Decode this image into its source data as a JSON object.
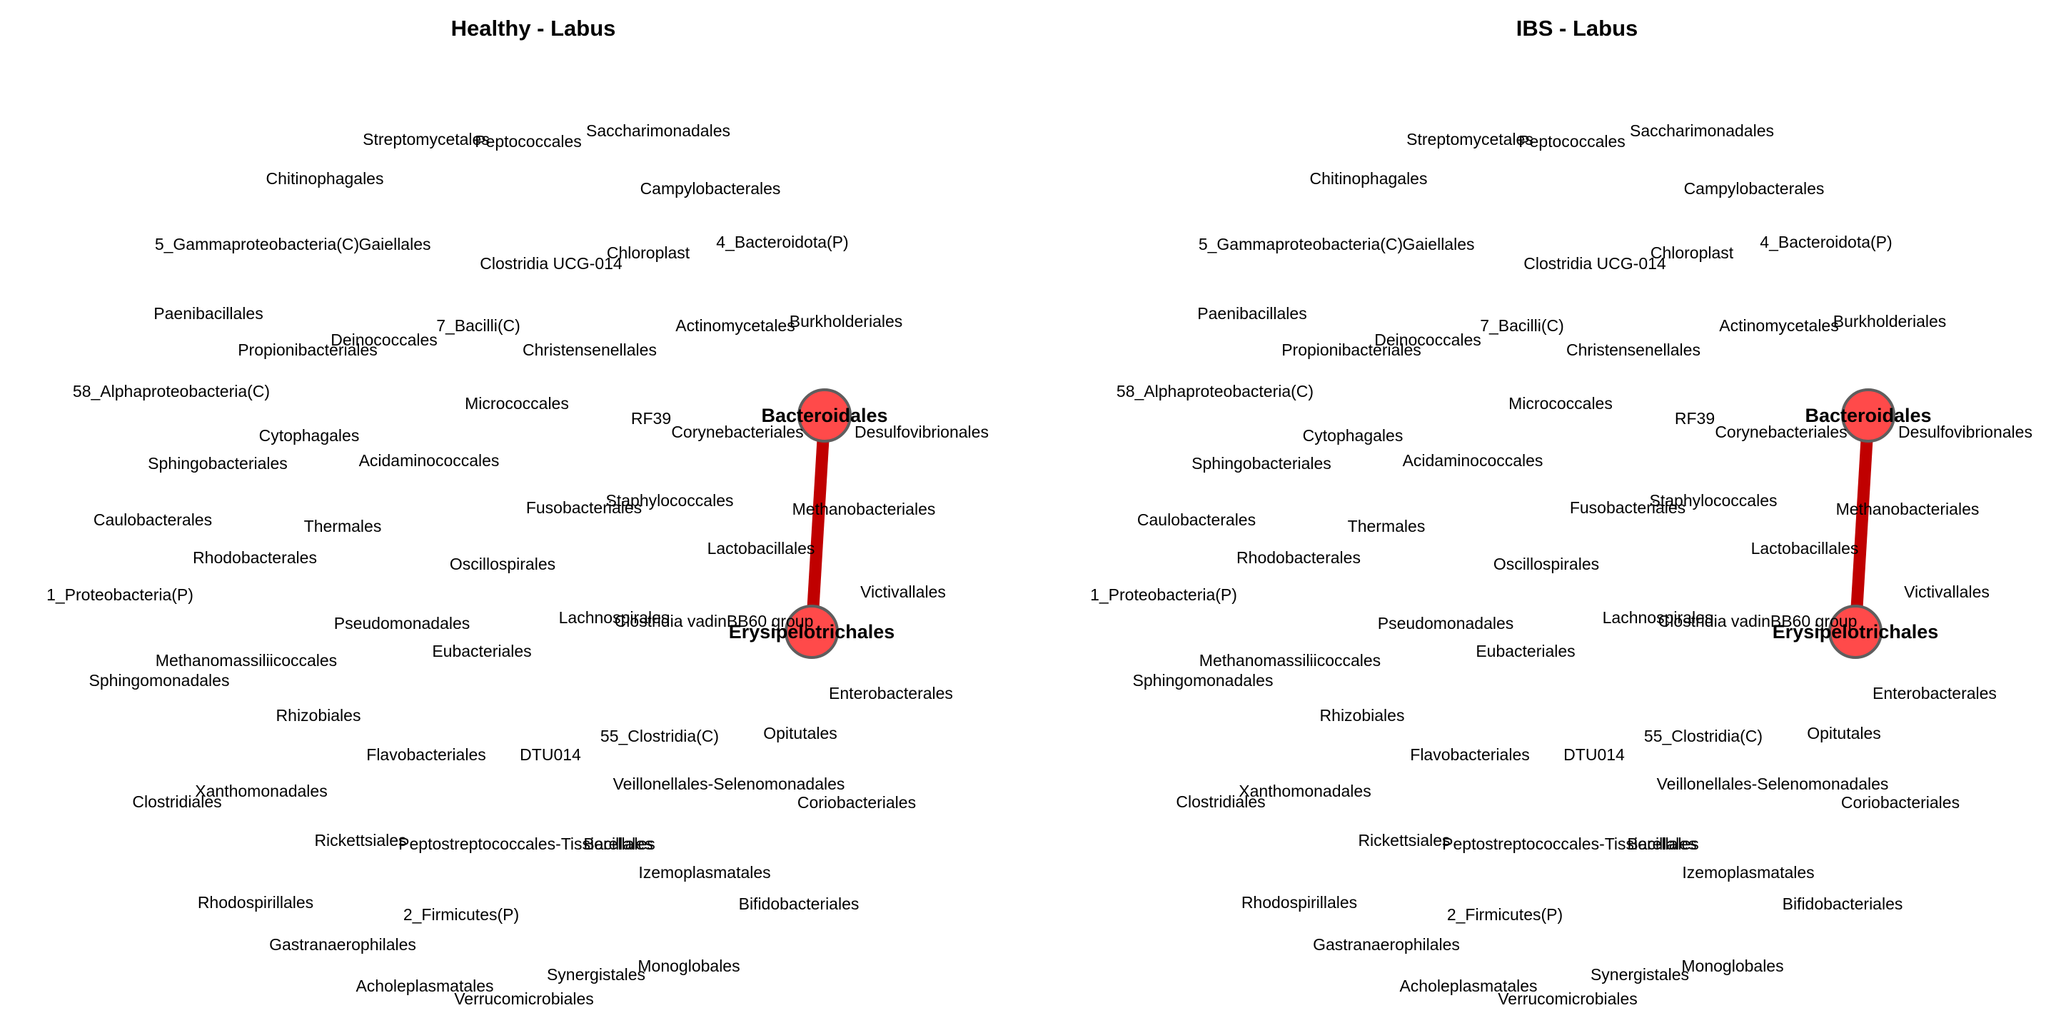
{
  "colors": {
    "node_fill": "#ff4a4a",
    "node_stroke": "#5e5e5e",
    "edge": "#c00000",
    "label": "#000000"
  },
  "panels": [
    {
      "title": "Healthy - Labus"
    },
    {
      "title": "IBS - Labus"
    }
  ],
  "nodes": [
    {
      "id": "Streptomycetales",
      "label": "Streptomycetales",
      "hub": false
    },
    {
      "id": "Peptococcales",
      "label": "Peptococcales",
      "hub": false
    },
    {
      "id": "Saccharimonadales",
      "label": "Saccharimonadales",
      "hub": false
    },
    {
      "id": "Chitinophagales",
      "label": "Chitinophagales",
      "hub": false
    },
    {
      "id": "Campylobacterales",
      "label": "Campylobacterales",
      "hub": false
    },
    {
      "id": "5_Gammaproteobacteria(C)",
      "label": "5_Gammaproteobacteria(C)",
      "hub": false
    },
    {
      "id": "Gaiellales",
      "label": "Gaiellales",
      "hub": false
    },
    {
      "id": "Chloroplast",
      "label": "Chloroplast",
      "hub": false
    },
    {
      "id": "4_Bacteroidota(P)",
      "label": "4_Bacteroidota(P)",
      "hub": false
    },
    {
      "id": "Clostridia UCG-014",
      "label": "Clostridia UCG-014",
      "hub": false
    },
    {
      "id": "Paenibacillales",
      "label": "Paenibacillales",
      "hub": false
    },
    {
      "id": "Deinococcales",
      "label": "Deinococcales",
      "hub": false
    },
    {
      "id": "7_Bacilli(C)",
      "label": "7_Bacilli(C)",
      "hub": false
    },
    {
      "id": "Actinomycetales",
      "label": "Actinomycetales",
      "hub": false
    },
    {
      "id": "Burkholderiales",
      "label": "Burkholderiales",
      "hub": false
    },
    {
      "id": "Propionibacteriales",
      "label": "Propionibacteriales",
      "hub": false
    },
    {
      "id": "Christensenellales",
      "label": "Christensenellales",
      "hub": false
    },
    {
      "id": "58_Alphaproteobacteria(C)",
      "label": "58_Alphaproteobacteria(C)",
      "hub": false
    },
    {
      "id": "Micrococcales",
      "label": "Micrococcales",
      "hub": false
    },
    {
      "id": "Bacteroidales",
      "label": "Bacteroidales",
      "hub": true
    },
    {
      "id": "RF39",
      "label": "RF39",
      "hub": false
    },
    {
      "id": "Corynebacteriales",
      "label": "Corynebacteriales",
      "hub": false
    },
    {
      "id": "Desulfovibrionales",
      "label": "Desulfovibrionales",
      "hub": false
    },
    {
      "id": "Cytophagales",
      "label": "Cytophagales",
      "hub": false
    },
    {
      "id": "Sphingobacteriales",
      "label": "Sphingobacteriales",
      "hub": false
    },
    {
      "id": "Acidaminococcales",
      "label": "Acidaminococcales",
      "hub": false
    },
    {
      "id": "Staphylococcales",
      "label": "Staphylococcales",
      "hub": false
    },
    {
      "id": "Fusobacteriales",
      "label": "Fusobacteriales",
      "hub": false
    },
    {
      "id": "Methanobacteriales",
      "label": "Methanobacteriales",
      "hub": false
    },
    {
      "id": "Caulobacterales",
      "label": "Caulobacterales",
      "hub": false
    },
    {
      "id": "Thermales",
      "label": "Thermales",
      "hub": false
    },
    {
      "id": "Lactobacillales",
      "label": "Lactobacillales",
      "hub": false
    },
    {
      "id": "Rhodobacterales",
      "label": "Rhodobacterales",
      "hub": false
    },
    {
      "id": "Oscillospirales",
      "label": "Oscillospirales",
      "hub": false
    },
    {
      "id": "Victivallales",
      "label": "Victivallales",
      "hub": false
    },
    {
      "id": "1_Proteobacteria(P)",
      "label": "1_Proteobacteria(P)",
      "hub": false
    },
    {
      "id": "Lachnospirales",
      "label": "Lachnospirales",
      "hub": false
    },
    {
      "id": "Clostridia vadinBB60 group",
      "label": "Clostridia vadinBB60 group",
      "hub": false
    },
    {
      "id": "Pseudomonadales",
      "label": "Pseudomonadales",
      "hub": false
    },
    {
      "id": "Erysipelotrichales",
      "label": "Erysipelotrichales",
      "hub": true
    },
    {
      "id": "Eubacteriales",
      "label": "Eubacteriales",
      "hub": false
    },
    {
      "id": "Methanomassiliicoccales",
      "label": "Methanomassiliicoccales",
      "hub": false
    },
    {
      "id": "Sphingomonadales",
      "label": "Sphingomonadales",
      "hub": false
    },
    {
      "id": "Enterobacterales",
      "label": "Enterobacterales",
      "hub": false
    },
    {
      "id": "Rhizobiales",
      "label": "Rhizobiales",
      "hub": false
    },
    {
      "id": "55_Clostridia(C)",
      "label": "55_Clostridia(C)",
      "hub": false
    },
    {
      "id": "Opitutales",
      "label": "Opitutales",
      "hub": false
    },
    {
      "id": "Flavobacteriales",
      "label": "Flavobacteriales",
      "hub": false
    },
    {
      "id": "DTU014",
      "label": "DTU014",
      "hub": false
    },
    {
      "id": "Veillonellales-Selenomonadales",
      "label": "Veillonellales-Selenomonadales",
      "hub": false
    },
    {
      "id": "Xanthomonadales",
      "label": "Xanthomonadales",
      "hub": false
    },
    {
      "id": "Coriobacteriales",
      "label": "Coriobacteriales",
      "hub": false
    },
    {
      "id": "Clostridiales",
      "label": "Clostridiales",
      "hub": false
    },
    {
      "id": "Rickettsiales",
      "label": "Rickettsiales",
      "hub": false
    },
    {
      "id": "Peptostreptococcales-Tissierellales",
      "label": "Peptostreptococcales-Tissierellales",
      "hub": false
    },
    {
      "id": "Bacillales",
      "label": "Bacillales",
      "hub": false
    },
    {
      "id": "Izemoplasmatales",
      "label": "Izemoplasmatales",
      "hub": false
    },
    {
      "id": "Rhodospirillales",
      "label": "Rhodospirillales",
      "hub": false
    },
    {
      "id": "2_Firmicutes(P)",
      "label": "2_Firmicutes(P)",
      "hub": false
    },
    {
      "id": "Bifidobacteriales",
      "label": "Bifidobacteriales",
      "hub": false
    },
    {
      "id": "Gastranaerophilales",
      "label": "Gastranaerophilales",
      "hub": false
    },
    {
      "id": "Monoglobales",
      "label": "Monoglobales",
      "hub": false
    },
    {
      "id": "Synergistales",
      "label": "Synergistales",
      "hub": false
    },
    {
      "id": "Acholeplasmatales",
      "label": "Acholeplasmatales",
      "hub": false
    },
    {
      "id": "Verrucomicrobiales",
      "label": "Verrucomicrobiales",
      "hub": false
    }
  ],
  "edges": [
    {
      "source": "Bacteroidales",
      "target": "Erysipelotrichales"
    }
  ]
}
